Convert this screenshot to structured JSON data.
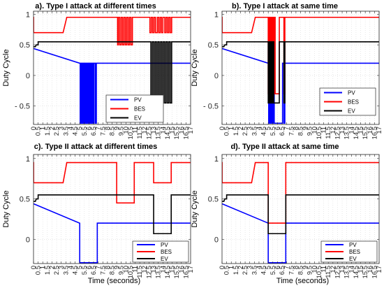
{
  "figure": {
    "ylabel": "Duty Cycle",
    "xlabel": "Time (seconds)"
  },
  "chart_data": [
    {
      "type": "line",
      "title": "a). Type I attack at different times",
      "xlabel": "",
      "ylabel": "Duty Cycle",
      "xlim": [
        0,
        17
      ],
      "ylim": [
        -0.8,
        1.05
      ],
      "xticks": [
        0,
        0.5,
        1,
        1.5,
        2,
        2.5,
        3,
        3.5,
        4,
        4.5,
        5,
        5.5,
        6,
        6.5,
        7,
        7.5,
        8,
        8.5,
        9,
        9.5,
        10,
        10.5,
        11,
        11.5,
        12,
        12.5,
        13,
        13.5,
        14,
        14.5,
        15,
        15.5,
        16,
        16.5,
        17
      ],
      "xticklabels": [
        "0",
        "0.5",
        "1",
        "1.5",
        "2",
        "2.5",
        "3",
        "3.5",
        "4",
        "4.5",
        "5",
        "5.5",
        "6",
        "6.5",
        "7",
        "7.5",
        "8",
        "8.5",
        "9",
        "9.5",
        "10",
        "10.5",
        "11",
        "11.5",
        "12",
        "12.5",
        "13",
        "13.5",
        "14",
        "14.5",
        "15",
        "15.5",
        "16",
        "16.5",
        "17"
      ],
      "yticks": [
        -0.5,
        0,
        0.5,
        1
      ],
      "yticklabels": [
        "- 0.5",
        "0",
        "0.5",
        "1"
      ],
      "grid": true,
      "legend": "bottom-center",
      "series": [
        {
          "name": "PV",
          "color": "#0000ff",
          "x": [
            0,
            5,
            5,
            5.05,
            5.05,
            5.15,
            5.15,
            5.25,
            5.25,
            5.35,
            5.35,
            5.45,
            5.45,
            5.55,
            5.55,
            5.65,
            5.65,
            5.75,
            5.75,
            5.85,
            5.85,
            5.95,
            5.95,
            6.05,
            6.05,
            6.15,
            6.15,
            6.25,
            6.25,
            6.35,
            6.35,
            6.45,
            6.45,
            6.55,
            6.55,
            6.7,
            6.7,
            6.8,
            6.8,
            7.0,
            7.0,
            17
          ],
          "y": [
            0.44,
            0.2,
            0.2,
            0.2,
            -0.78,
            -0.78,
            0.2,
            0.2,
            -0.78,
            -0.78,
            0.2,
            0.2,
            -0.78,
            -0.78,
            0.2,
            0.2,
            -0.78,
            -0.78,
            0.2,
            0.2,
            -0.78,
            -0.78,
            0.2,
            0.2,
            -0.78,
            -0.78,
            0.2,
            0.2,
            -0.78,
            -0.78,
            0.2,
            0.2,
            -0.78,
            -0.78,
            0.2,
            0.2,
            -0.78,
            -0.78,
            0.2,
            0.2,
            0.2,
            0.2
          ]
        },
        {
          "name": "BES",
          "color": "#ff0000",
          "x": [
            0,
            0.01,
            0.01,
            3.2,
            3.6,
            9.1,
            9.1,
            9.2,
            9.2,
            9.35,
            9.35,
            9.5,
            9.5,
            9.65,
            9.65,
            9.8,
            9.8,
            9.95,
            9.95,
            10.1,
            10.1,
            10.25,
            10.25,
            10.4,
            10.4,
            10.55,
            10.55,
            10.7,
            10.7,
            12.6,
            12.6,
            12.75,
            12.75,
            12.9,
            12.9,
            13.05,
            13.05,
            13.2,
            13.2,
            13.4,
            13.4,
            13.55,
            13.55,
            13.7,
            13.7,
            13.85,
            13.85,
            14.0,
            14.0,
            14.2,
            14.2,
            14.35,
            14.35,
            14.5,
            14.5,
            14.65,
            14.65,
            14.8,
            14.8,
            14.95,
            14.95,
            15.1,
            15.1,
            17
          ],
          "y": [
            0.95,
            0.95,
            0.7,
            0.7,
            0.95,
            0.95,
            0.5,
            0.5,
            0.95,
            0.95,
            0.5,
            0.5,
            0.95,
            0.95,
            0.5,
            0.5,
            0.95,
            0.95,
            0.5,
            0.5,
            0.95,
            0.95,
            0.5,
            0.5,
            0.95,
            0.95,
            0.5,
            0.5,
            0.95,
            0.95,
            0.7,
            0.7,
            0.95,
            0.95,
            0.7,
            0.7,
            0.95,
            0.95,
            0.7,
            0.7,
            0.95,
            0.95,
            0.7,
            0.7,
            0.95,
            0.95,
            0.7,
            0.7,
            0.95,
            0.95,
            0.7,
            0.7,
            0.95,
            0.95,
            0.7,
            0.7,
            0.95,
            0.95,
            0.7,
            0.7,
            0.95,
            0.95,
            0.95,
            0.95
          ]
        },
        {
          "name": "EV",
          "color": "#000000",
          "x": [
            0,
            0.2,
            0.3,
            0.5,
            0.5,
            12.6,
            12.6,
            12.7,
            12.7,
            12.85,
            12.85,
            13.0,
            13.0,
            13.15,
            13.15,
            13.3,
            13.3,
            13.45,
            13.45,
            13.6,
            13.6,
            13.75,
            13.75,
            13.9,
            13.9,
            14.05,
            14.05,
            14.2,
            14.2,
            14.35,
            14.35,
            14.5,
            14.5,
            14.65,
            14.65,
            14.8,
            14.8,
            14.95,
            14.95,
            15.1,
            15.1,
            17
          ],
          "y": [
            0.47,
            0.47,
            0.5,
            0.5,
            0.55,
            0.55,
            0.55,
            0.55,
            -0.45,
            -0.45,
            0.55,
            0.55,
            -0.45,
            -0.45,
            0.55,
            0.55,
            -0.45,
            -0.45,
            0.55,
            0.55,
            -0.45,
            -0.45,
            0.55,
            0.55,
            -0.45,
            -0.45,
            0.55,
            0.55,
            -0.45,
            -0.45,
            0.55,
            0.55,
            -0.45,
            -0.45,
            0.55,
            0.55,
            -0.45,
            -0.45,
            0.55,
            0.55,
            0.55,
            0.55
          ]
        }
      ]
    },
    {
      "type": "line",
      "title": "b). Type I attack at same time",
      "xlabel": "",
      "ylabel": "Duty Cycle",
      "xlim": [
        0,
        17
      ],
      "ylim": [
        -0.8,
        1.05
      ],
      "xticks": [
        0,
        0.5,
        1,
        1.5,
        2,
        2.5,
        3,
        3.5,
        4,
        4.5,
        5,
        5.5,
        6,
        6.5,
        7,
        7.5,
        8,
        8.5,
        9,
        9.5,
        10,
        10.5,
        11,
        11.5,
        12,
        12.5,
        13,
        13.5,
        14,
        14.5,
        15,
        15.5,
        16,
        16.5,
        17
      ],
      "xticklabels": [
        "0",
        "0.5",
        "1",
        "1.5",
        "2",
        "2.5",
        "3",
        "3.5",
        "4",
        "4.5",
        "5",
        "5.5",
        "6",
        "6.5",
        "7",
        "7.5",
        "8",
        "8.5",
        "9",
        "9.5",
        "10",
        "10.5",
        "11",
        "11.5",
        "12",
        "12.5",
        "13",
        "13.5",
        "14",
        "14.5",
        "15",
        "15.5",
        "16",
        "16.5",
        "17"
      ],
      "yticks": [
        -0.5,
        0,
        0.5,
        1
      ],
      "yticklabels": [
        "- 0.5",
        "0",
        "0.5",
        "1"
      ],
      "grid": true,
      "legend": "bottom-right",
      "series": [
        {
          "name": "PV",
          "color": "#0000ff",
          "x": [
            0,
            5,
            5,
            5.05,
            5.05,
            5.15,
            5.15,
            5.25,
            5.25,
            5.35,
            5.35,
            5.45,
            5.45,
            5.55,
            5.55,
            5.65,
            5.65,
            6.55,
            6.55,
            6.7,
            6.7,
            6.8,
            6.8,
            6.9,
            6.9,
            17
          ],
          "y": [
            0.44,
            0.2,
            0.2,
            0.2,
            -0.78,
            -0.78,
            0.2,
            0.2,
            -0.78,
            -0.78,
            0.2,
            0.2,
            -0.78,
            -0.78,
            0.2,
            0.2,
            -0.78,
            -0.78,
            0.2,
            0.2,
            -0.78,
            -0.78,
            0.2,
            0.2,
            0.2,
            0.2
          ]
        },
        {
          "name": "BES",
          "color": "#ff0000",
          "x": [
            0,
            0.01,
            0.01,
            3.2,
            3.6,
            5.0,
            5.0,
            5.05,
            5.05,
            5.15,
            5.15,
            5.25,
            5.25,
            5.35,
            5.35,
            5.45,
            5.45,
            5.55,
            5.55,
            5.65,
            5.65,
            5.75,
            5.75,
            6.2,
            6.2,
            6.7,
            6.7,
            6.8,
            6.8,
            6.9,
            6.9,
            17
          ],
          "y": [
            0.95,
            0.95,
            0.7,
            0.7,
            0.95,
            0.95,
            -0.3,
            -0.3,
            0.95,
            0.95,
            -0.3,
            -0.3,
            0.95,
            0.95,
            -0.3,
            -0.3,
            0.95,
            0.95,
            -0.3,
            -0.3,
            0.95,
            0.95,
            -0.3,
            -0.3,
            0.95,
            0.95,
            -0.3,
            -0.3,
            0.95,
            0.95,
            0.95,
            0.95
          ]
        },
        {
          "name": "EV",
          "color": "#000000",
          "x": [
            0,
            0.2,
            0.3,
            0.5,
            0.5,
            5.0,
            5.0,
            5.1,
            5.1,
            5.2,
            5.2,
            5.3,
            5.3,
            5.4,
            5.4,
            5.5,
            5.5,
            5.6,
            5.6,
            6.2,
            6.2,
            6.7,
            6.7,
            6.8,
            6.8,
            6.9,
            6.9,
            17
          ],
          "y": [
            0.47,
            0.47,
            0.5,
            0.5,
            0.55,
            0.55,
            -0.45,
            -0.45,
            0.55,
            0.55,
            -0.45,
            -0.45,
            0.55,
            0.55,
            -0.45,
            -0.45,
            0.55,
            0.55,
            -0.45,
            -0.45,
            0.55,
            0.55,
            -0.45,
            -0.45,
            0.55,
            0.55,
            0.55,
            0.55
          ]
        }
      ]
    },
    {
      "type": "line",
      "title": "c).  Type II attack at different times",
      "xlabel": "Time (seconds)",
      "ylabel": "Duty Cycle",
      "xlim": [
        0,
        17
      ],
      "ylim": [
        -0.3,
        1.05
      ],
      "xticks": [
        0,
        0.5,
        1,
        1.5,
        2,
        2.5,
        3,
        3.5,
        4,
        4.5,
        5,
        5.5,
        6,
        6.5,
        7,
        7.5,
        8,
        8.5,
        9,
        9.5,
        10,
        10.5,
        11,
        11.5,
        12,
        12.5,
        13,
        13.5,
        14,
        14.5,
        15,
        15.5,
        16,
        16.5,
        17
      ],
      "xticklabels": [
        "0",
        "0.5",
        "1",
        "1.5",
        "2",
        "2.5",
        "3",
        "3.5",
        "4",
        "4.5",
        "5",
        "5.5",
        "6",
        "6.5",
        "7",
        "7.5",
        "8",
        "8.5",
        "9",
        "9.5",
        "10",
        "10.5",
        "11",
        "11.5",
        "12",
        "12.5",
        "13",
        "13.5",
        "14",
        "14.5",
        "15",
        "15.5",
        "16",
        "16.5",
        "17"
      ],
      "yticks": [
        0,
        0.5,
        1
      ],
      "yticklabels": [
        "0",
        "0.5",
        "1"
      ],
      "grid": true,
      "legend": "bottom-right",
      "series": [
        {
          "name": "PV",
          "color": "#0000ff",
          "x": [
            0,
            5,
            5,
            6.9,
            6.9,
            17
          ],
          "y": [
            0.44,
            0.2,
            -0.29,
            -0.29,
            0.2,
            0.2
          ]
        },
        {
          "name": "BES",
          "color": "#ff0000",
          "x": [
            0,
            0.01,
            0.01,
            3.2,
            3.6,
            9.0,
            9.0,
            10.9,
            10.9,
            13.0,
            13.0,
            14.9,
            14.9,
            17
          ],
          "y": [
            0.95,
            0.95,
            0.7,
            0.7,
            0.95,
            0.95,
            0.45,
            0.45,
            0.95,
            0.95,
            0.7,
            0.7,
            0.95,
            0.95
          ]
        },
        {
          "name": "EV",
          "color": "#000000",
          "x": [
            0,
            0.2,
            0.3,
            0.5,
            0.5,
            13.0,
            13.0,
            14.9,
            14.9,
            17
          ],
          "y": [
            0.47,
            0.47,
            0.5,
            0.5,
            0.55,
            0.55,
            0.07,
            0.07,
            0.55,
            0.55
          ]
        }
      ]
    },
    {
      "type": "line",
      "title": "d).  Type II attack at same time",
      "xlabel": "Time (seconds)",
      "ylabel": "Duty Cycle",
      "xlim": [
        0,
        17
      ],
      "ylim": [
        -0.3,
        1.05
      ],
      "xticks": [
        0,
        0.5,
        1,
        1.5,
        2,
        2.5,
        3,
        3.5,
        4,
        4.5,
        5,
        5.5,
        6,
        6.5,
        7,
        7.5,
        8,
        8.5,
        9,
        9.5,
        10,
        10.5,
        11,
        11.5,
        12,
        12.5,
        13,
        13.5,
        14,
        14.5,
        15,
        15.5,
        16,
        16.5,
        17
      ],
      "xticklabels": [
        "0",
        "0.5",
        "1",
        "1.5",
        "2",
        "2.5",
        "3",
        "3.5",
        "4",
        "4.5",
        "5",
        "5.5",
        "6",
        "6.5",
        "7",
        "7.5",
        "8",
        "8.5",
        "9",
        "9.5",
        "10",
        "10.5",
        "11",
        "11.5",
        "12",
        "12.5",
        "13",
        "13.5",
        "14",
        "14.5",
        "15",
        "15.5",
        "16",
        "16.5",
        "17"
      ],
      "yticks": [
        0,
        0.5,
        1
      ],
      "yticklabels": [
        "0",
        "0.5",
        "1"
      ],
      "grid": true,
      "legend": "bottom-right",
      "series": [
        {
          "name": "PV",
          "color": "#0000ff",
          "x": [
            0,
            5,
            5,
            6.9,
            6.9,
            17
          ],
          "y": [
            0.44,
            0.2,
            -0.29,
            -0.29,
            0.2,
            0.2
          ]
        },
        {
          "name": "BES",
          "color": "#ff0000",
          "x": [
            0,
            0.01,
            0.01,
            3.2,
            3.6,
            5.0,
            5.0,
            6.9,
            6.9,
            17
          ],
          "y": [
            0.95,
            0.95,
            0.7,
            0.7,
            0.95,
            0.95,
            0.2,
            0.2,
            0.95,
            0.95
          ]
        },
        {
          "name": "EV",
          "color": "#000000",
          "x": [
            0,
            0.2,
            0.3,
            0.5,
            0.5,
            5.0,
            5.0,
            6.9,
            6.9,
            17
          ],
          "y": [
            0.47,
            0.47,
            0.5,
            0.5,
            0.55,
            0.55,
            0.07,
            0.07,
            0.55,
            0.55
          ]
        }
      ]
    }
  ]
}
